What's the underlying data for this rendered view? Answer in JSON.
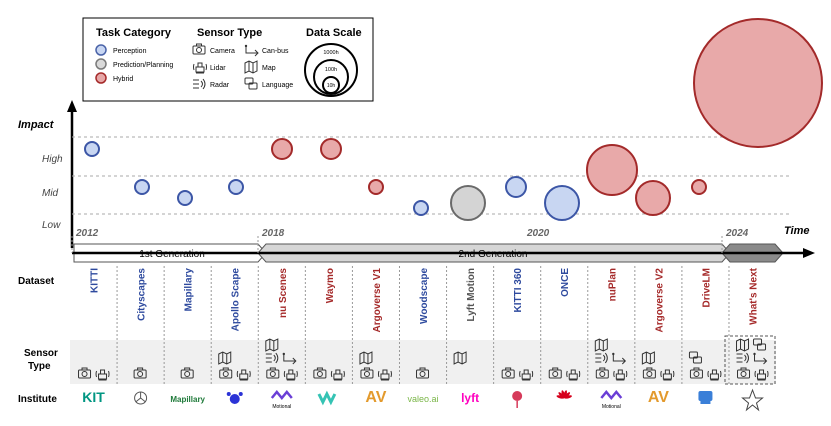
{
  "legend": {
    "task_title": "Task Category",
    "task_items": [
      {
        "label": "Perception",
        "color": "#4a63a8",
        "fill": "#c8d6f2"
      },
      {
        "label": "Prediction/Planning",
        "color": "#7a7a7a",
        "fill": "#d9d9d9"
      },
      {
        "label": "Hybrid",
        "color": "#a52a2a",
        "fill": "#e6a7a7"
      }
    ],
    "sensor_title": "Sensor Type",
    "sensor_items": [
      {
        "label": "Camera",
        "icon": "camera-icon"
      },
      {
        "label": "Can-bus",
        "icon": "can-bus-icon"
      },
      {
        "label": "Lidar",
        "icon": "lidar-icon"
      },
      {
        "label": "Map",
        "icon": "map-icon"
      },
      {
        "label": "Radar",
        "icon": "radar-icon"
      },
      {
        "label": "Language",
        "icon": "language-icon"
      }
    ],
    "scale_title": "Data Scale",
    "scale_items": [
      "1000h",
      "100h",
      "10h"
    ]
  },
  "axis": {
    "y_title": "Impact",
    "y_levels": [
      "High",
      "Mid",
      "Low"
    ],
    "x_title": "Time",
    "years": [
      "2012",
      "2018",
      "2020",
      "2024"
    ]
  },
  "generations": [
    "1st Generation",
    "2nd Generation"
  ],
  "row_labels": {
    "dataset": "Dataset",
    "sensor_line1": "Sensor",
    "sensor_line2": "Type",
    "institute": "Institute"
  },
  "datasets": [
    {
      "name": "KITTI",
      "color": "#2e4a9e",
      "task": "perception",
      "impact": "high",
      "size": "small",
      "sensors": [
        "camera",
        "lidar"
      ],
      "institute": "KIT"
    },
    {
      "name": "Cityscapes",
      "color": "#2e4a9e",
      "task": "perception",
      "impact": "mid",
      "size": "small",
      "sensors": [
        "camera"
      ],
      "institute": "mercedes"
    },
    {
      "name": "Mapillary",
      "color": "#2e4a9e",
      "task": "perception",
      "impact": "mid-low",
      "size": "small",
      "sensors": [
        "camera"
      ],
      "institute": "Mapillary"
    },
    {
      "name": "Apollo Scape",
      "color": "#2e4a9e",
      "task": "perception",
      "impact": "mid",
      "size": "small",
      "sensors": [
        "map",
        "camera",
        "lidar"
      ],
      "institute": "baidu"
    },
    {
      "name": "nu Scenes",
      "color": "#a52a2a",
      "task": "hybrid",
      "impact": "high",
      "size": "medium",
      "sensors": [
        "radar",
        "can-bus",
        "map",
        "camera",
        "lidar"
      ],
      "institute": "Motional"
    },
    {
      "name": "Waymo",
      "color": "#a52a2a",
      "task": "hybrid",
      "impact": "high",
      "size": "medium",
      "sensors": [
        "camera",
        "lidar"
      ],
      "institute": "waymo"
    },
    {
      "name": "Argoverse V1",
      "color": "#a52a2a",
      "task": "hybrid",
      "impact": "mid",
      "size": "small",
      "sensors": [
        "map",
        "camera",
        "lidar"
      ],
      "institute": "AV"
    },
    {
      "name": "Woodscape",
      "color": "#2e4a9e",
      "task": "perception",
      "impact": "low",
      "size": "small",
      "sensors": [
        "camera"
      ],
      "institute": "valeo.ai"
    },
    {
      "name": "Lyft Motion",
      "color": "#555555",
      "task": "prediction",
      "impact": "low-mid",
      "size": "large",
      "sensors": [
        "map"
      ],
      "institute": "lyft"
    },
    {
      "name": "KITTI 360",
      "color": "#2e4a9e",
      "task": "perception",
      "impact": "mid",
      "size": "medium",
      "sensors": [
        "camera",
        "lidar"
      ],
      "institute": "tum"
    },
    {
      "name": "ONCE",
      "color": "#2e4a9e",
      "task": "perception",
      "impact": "low-mid",
      "size": "large",
      "sensors": [
        "camera",
        "lidar"
      ],
      "institute": "huawei"
    },
    {
      "name": "nuPlan",
      "color": "#a52a2a",
      "task": "hybrid",
      "impact": "mid-high",
      "size": "xlarge",
      "sensors": [
        "radar",
        "can-bus",
        "map",
        "camera",
        "lidar"
      ],
      "institute": "Motional"
    },
    {
      "name": "Argoverse V2",
      "color": "#a52a2a",
      "task": "hybrid",
      "impact": "mid-low",
      "size": "large",
      "sensors": [
        "map",
        "camera",
        "lidar"
      ],
      "institute": "AV"
    },
    {
      "name": "DriveLM",
      "color": "#a52a2a",
      "task": "hybrid",
      "impact": "mid",
      "size": "small",
      "sensors": [
        "language",
        "camera",
        "lidar"
      ],
      "institute": "opendrivelab"
    },
    {
      "name": "What's Next",
      "color": "#a52a2a",
      "task": "hybrid",
      "impact": "very-high",
      "size": "huge",
      "sensors": [
        "radar",
        "can-bus",
        "map",
        "language",
        "camera",
        "lidar"
      ],
      "institute": "star"
    }
  ],
  "institute_text": {
    "kit": "KIT",
    "mapillary": "Mapillary",
    "motional": "Motional",
    "av": "AV",
    "valeo": "valeo.ai",
    "lyft": "lyft"
  }
}
